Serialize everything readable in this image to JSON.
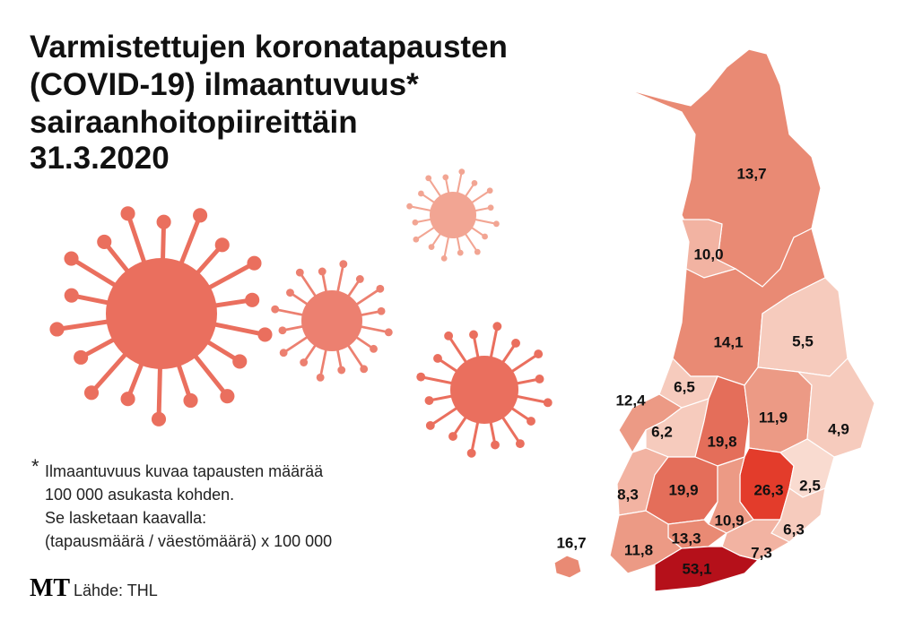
{
  "title": [
    "Varmistettujen koronatapausten",
    "(COVID-19) ilmaantuvuus*",
    "sairaanhoitopiireittäin",
    "31.3.2020"
  ],
  "footnote": {
    "marker": "*",
    "lines": [
      "Ilmaantuvuus kuvaa tapausten määrää",
      "100 000 asukasta kohden.",
      "Se lasketaan kaavalla:",
      "(tapausmäärä / väestömäärä) x 100 000"
    ]
  },
  "source": {
    "logo": "MT",
    "text": "Lähde: THL"
  },
  "regions": [
    "13,7",
    "10,0",
    "14,1",
    "5,5",
    "12,4",
    "6,5",
    "6,2",
    "19,8",
    "11,9",
    "4,9",
    "8,3",
    "19,9",
    "26,3",
    "2,5",
    "10,9",
    "6,3",
    "13,3",
    "11,8",
    "7,3",
    "53,1",
    "16,7"
  ]
}
